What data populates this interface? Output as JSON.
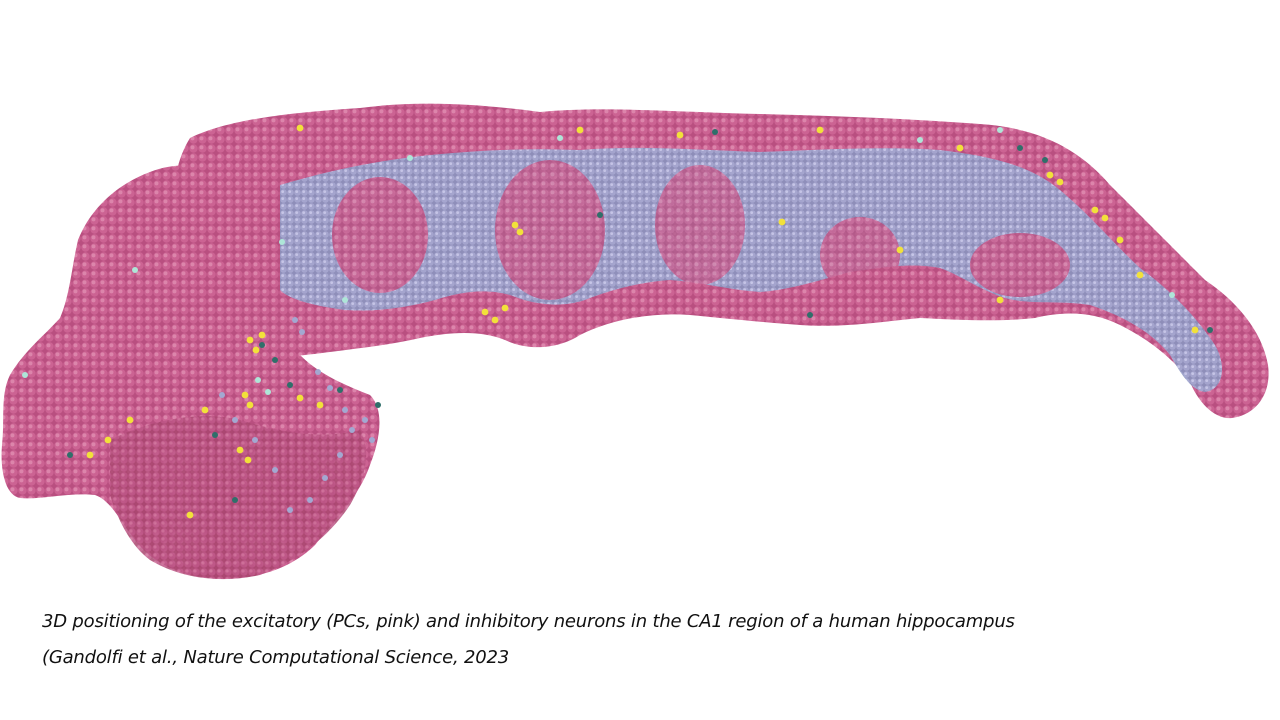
{
  "figure": {
    "subject": "3D rendering of neurons in the CA1 region of a human hippocampus",
    "colors": {
      "excitatory_pink": "#c45a8a",
      "excitatory_pink_light": "#d77aa3",
      "excitatory_pink_dark": "#a8456f",
      "inhibitory_lavender": "#9aa0c8",
      "inhibitory_lavender_light": "#b7bce0",
      "inhibitory_yellow": "#f2e13a",
      "inhibitory_teal": "#2f6f6a",
      "inhibitory_mint": "#aee6d8",
      "background": "#ffffff"
    }
  },
  "caption": {
    "line1": "3D positioning of the excitatory (PCs, pink) and inhibitory neurons in the CA1 region of a human hippocampus",
    "line2": "(Gandolfi et al., Nature Computational Science, 2023"
  }
}
